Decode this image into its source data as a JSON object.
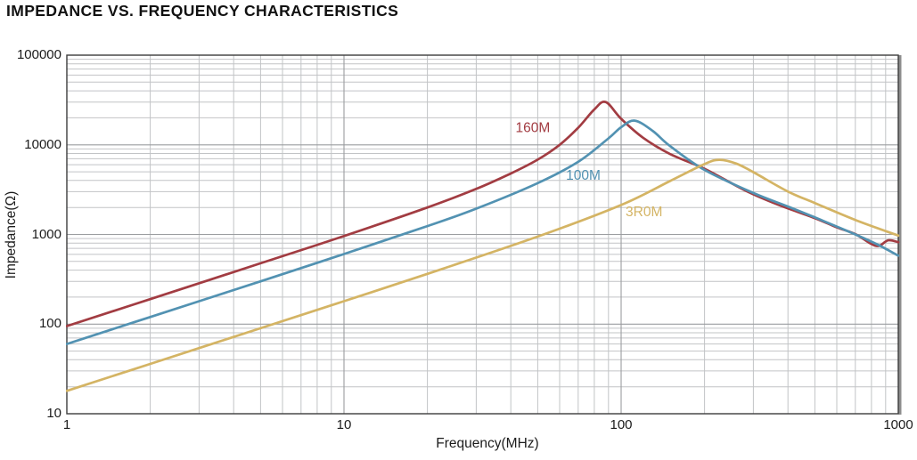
{
  "title": "IMPEDANCE VS. FREQUENCY CHARACTERISTICS",
  "chart_data": {
    "type": "line",
    "title": "IMPEDANCE VS. FREQUENCY CHARACTERISTICS",
    "x_axis": {
      "label": "Frequency(MHz)",
      "scale": "log",
      "min": 1,
      "max": 1000,
      "ticks": [
        1,
        10,
        100,
        1000
      ]
    },
    "y_axis": {
      "label": "Impedance(Ω)",
      "scale": "log",
      "min": 10,
      "max": 100000,
      "ticks": [
        10,
        100,
        1000,
        10000,
        100000
      ]
    },
    "grid": {
      "minor": true,
      "minor_color": "#c2c4c6",
      "major_color": "#9b9da0",
      "border_color": "#3c3c3c",
      "right_edge_color": "#8d8d8d"
    },
    "series": [
      {
        "name": "160M",
        "color": "#A23C42",
        "label_pos": {
          "x": 48,
          "y": 13800
        },
        "points": [
          [
            1,
            95
          ],
          [
            2,
            190
          ],
          [
            5,
            477
          ],
          [
            10,
            960
          ],
          [
            20,
            2000
          ],
          [
            30,
            3220
          ],
          [
            40,
            4790
          ],
          [
            50,
            6830
          ],
          [
            60,
            10000
          ],
          [
            70,
            15500
          ],
          [
            80,
            24800
          ],
          [
            88,
            30000
          ],
          [
            100,
            19500
          ],
          [
            120,
            12000
          ],
          [
            150,
            7900
          ],
          [
            200,
            5400
          ],
          [
            280,
            3100
          ],
          [
            368,
            2150
          ],
          [
            500,
            1520
          ],
          [
            600,
            1200
          ],
          [
            700,
            1010
          ],
          [
            790,
            800
          ],
          [
            850,
            745
          ],
          [
            920,
            860
          ],
          [
            1000,
            820
          ]
        ]
      },
      {
        "name": "100M",
        "color": "#5292B2",
        "label_pos": {
          "x": 73,
          "y": 4070
        },
        "points": [
          [
            1,
            60
          ],
          [
            2,
            120
          ],
          [
            5,
            300
          ],
          [
            10,
            605
          ],
          [
            20,
            1240
          ],
          [
            30,
            1940
          ],
          [
            50,
            3740
          ],
          [
            70,
            6460
          ],
          [
            90,
            11800
          ],
          [
            100,
            15700
          ],
          [
            112,
            18600
          ],
          [
            130,
            14300
          ],
          [
            150,
            9700
          ],
          [
            200,
            5240
          ],
          [
            300,
            2900
          ],
          [
            400,
            2050
          ],
          [
            500,
            1550
          ],
          [
            700,
            1000
          ],
          [
            850,
            760
          ],
          [
            1000,
            580
          ]
        ]
      },
      {
        "name": "3R0M",
        "color": "#D4B464",
        "label_pos": {
          "x": 121,
          "y": 1590
        },
        "points": [
          [
            1,
            18
          ],
          [
            2,
            36
          ],
          [
            5,
            90
          ],
          [
            10,
            180
          ],
          [
            20,
            363
          ],
          [
            50,
            946
          ],
          [
            100,
            2130
          ],
          [
            150,
            3940
          ],
          [
            200,
            6100
          ],
          [
            226,
            6800
          ],
          [
            260,
            6180
          ],
          [
            300,
            4950
          ],
          [
            400,
            3010
          ],
          [
            500,
            2240
          ],
          [
            700,
            1450
          ],
          [
            1000,
            970
          ]
        ]
      }
    ]
  }
}
